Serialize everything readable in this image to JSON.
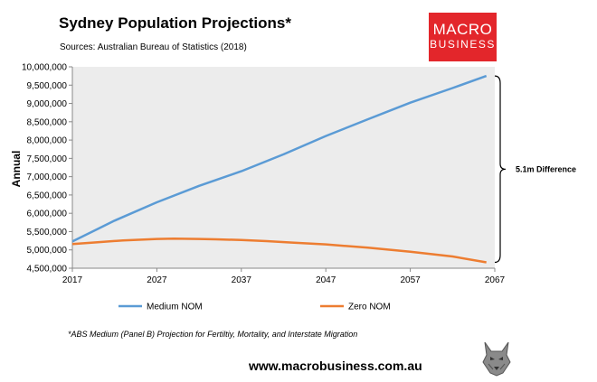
{
  "header": {
    "title": "Sydney Population Projections*",
    "subtitle": "Sources: Australian Bureau of Statistics (2018)"
  },
  "logo": {
    "line1": "MACRO",
    "line2": "BUSINESS",
    "bg_color": "#e3262b"
  },
  "footnote": "*ABS Medium (Panel B) Projection for Fertiltiy, Mortality, and Interstate Migration",
  "website": "www.macrobusiness.com.au",
  "chart_data": {
    "type": "line",
    "ylabel": "Annual",
    "xlim": [
      2017,
      2067
    ],
    "ylim": [
      4500000,
      10000000
    ],
    "x_ticks": [
      2017,
      2027,
      2037,
      2047,
      2057,
      2067
    ],
    "y_ticks": [
      4500000,
      5000000,
      5500000,
      6000000,
      6500000,
      7000000,
      7500000,
      8000000,
      8500000,
      9000000,
      9500000,
      10000000
    ],
    "y_tick_labels": [
      "4,500,000",
      "5,000,000",
      "5,500,000",
      "6,000,000",
      "6,500,000",
      "7,000,000",
      "7,500,000",
      "8,000,000",
      "8,500,000",
      "9,000,000",
      "9,500,000",
      "10,000,000"
    ],
    "grid": false,
    "plot_background": "#ececec",
    "legend_position": "bottom",
    "series": [
      {
        "name": "Medium NOM",
        "color": "#5b9bd5",
        "x": [
          2017,
          2022,
          2027,
          2032,
          2037,
          2042,
          2047,
          2052,
          2057,
          2062,
          2066
        ],
        "y": [
          5230000,
          5800000,
          6300000,
          6750000,
          7150000,
          7610000,
          8110000,
          8570000,
          9020000,
          9420000,
          9750000
        ]
      },
      {
        "name": "Zero NOM",
        "color": "#ed7d31",
        "x": [
          2017,
          2020,
          2023,
          2027,
          2029,
          2032,
          2034,
          2037,
          2040,
          2043,
          2047,
          2052,
          2057,
          2062,
          2066
        ],
        "y": [
          5160000,
          5210000,
          5260000,
          5300000,
          5310000,
          5300000,
          5290000,
          5270000,
          5240000,
          5200000,
          5150000,
          5060000,
          4950000,
          4820000,
          4660000
        ]
      }
    ],
    "annotation": {
      "text": "5.1m Difference",
      "from": 4660000,
      "to": 9750000
    }
  }
}
